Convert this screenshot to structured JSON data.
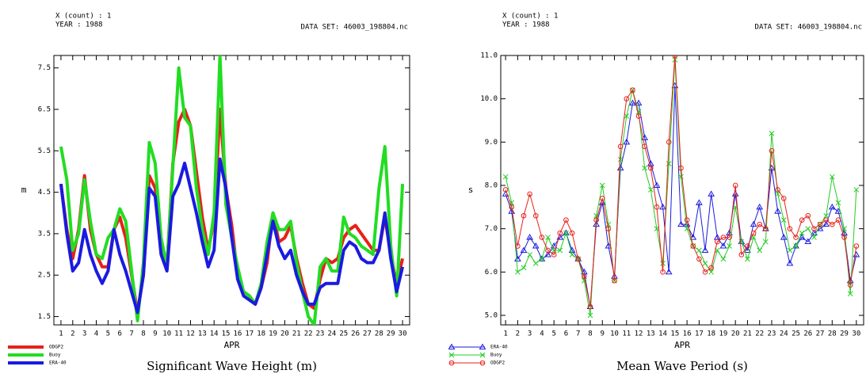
{
  "chart_data": [
    {
      "type": "line",
      "title": "Significant Wave Height (m)",
      "annotations": [
        "X (count) : 1",
        "YEAR : 1988",
        "DATA SET: 46003_198804.nc"
      ],
      "x_label": "APR",
      "y_label": "m",
      "line_width": 4,
      "legend": "bottom-left",
      "x": [
        1,
        1.5,
        2,
        2.5,
        3,
        3.5,
        4,
        4.5,
        5,
        5.5,
        6,
        6.5,
        7,
        7.5,
        8,
        8.5,
        9,
        9.5,
        10,
        10.5,
        11,
        11.5,
        12,
        12.5,
        13,
        13.5,
        14,
        14.5,
        15,
        15.5,
        16,
        16.5,
        17,
        17.5,
        18,
        18.5,
        19,
        19.5,
        20,
        20.5,
        21,
        21.5,
        22,
        22.5,
        23,
        23.5,
        24,
        24.5,
        25,
        25.5,
        26,
        26.5,
        27,
        27.5,
        28,
        28.5,
        29,
        29.5,
        30
      ],
      "xlim": [
        0.4,
        30.6
      ],
      "xticks": [
        1,
        2,
        3,
        4,
        5,
        6,
        7,
        8,
        9,
        10,
        11,
        12,
        13,
        14,
        15,
        16,
        17,
        18,
        19,
        20,
        21,
        22,
        23,
        24,
        25,
        26,
        27,
        28,
        29,
        30
      ],
      "ylim": [
        1.3,
        7.8
      ],
      "yticks": [
        1.5,
        2.5,
        3.5,
        4.5,
        5.5,
        6.5,
        7.5
      ],
      "series": [
        {
          "name": "ODGP2",
          "color": "#e8201a",
          "marker": "none",
          "values": [
            4.7,
            3.6,
            2.9,
            3.6,
            4.9,
            3.6,
            3.0,
            2.7,
            2.7,
            3.6,
            3.9,
            3.4,
            2.5,
            1.6,
            2.5,
            4.9,
            4.6,
            3.2,
            2.7,
            5.2,
            6.2,
            6.5,
            6.1,
            5.0,
            3.9,
            3.1,
            3.8,
            6.5,
            4.6,
            3.7,
            2.5,
            2.1,
            2.0,
            1.8,
            2.2,
            2.8,
            4.0,
            3.3,
            3.4,
            3.7,
            2.9,
            2.3,
            1.8,
            1.7,
            2.4,
            2.9,
            2.8,
            2.9,
            3.4,
            3.6,
            3.7,
            3.5,
            3.3,
            3.1,
            3.1,
            3.9,
            3.0,
            2.3,
            2.9
          ]
        },
        {
          "name": "Buoy",
          "color": "#22dd22",
          "marker": "none",
          "values": [
            5.6,
            4.8,
            3.1,
            3.5,
            4.8,
            3.8,
            3.0,
            2.9,
            3.4,
            3.6,
            4.1,
            3.8,
            2.6,
            1.4,
            2.8,
            5.7,
            5.2,
            3.4,
            2.7,
            5.1,
            7.5,
            6.3,
            6.1,
            4.6,
            3.6,
            3.0,
            4.0,
            7.8,
            4.2,
            3.4,
            2.7,
            2.1,
            2.0,
            1.8,
            2.3,
            3.3,
            4.0,
            3.6,
            3.6,
            3.8,
            2.8,
            2.1,
            1.5,
            1.3,
            2.7,
            2.9,
            2.6,
            2.6,
            3.9,
            3.5,
            3.4,
            3.2,
            3.1,
            3.0,
            4.6,
            5.6,
            3.2,
            2.0,
            4.7
          ]
        },
        {
          "name": "ERA-40",
          "color": "#1a1ae0",
          "marker": "none",
          "values": [
            4.7,
            3.5,
            2.6,
            2.8,
            3.6,
            3.0,
            2.6,
            2.3,
            2.6,
            3.6,
            3.0,
            2.6,
            2.1,
            1.6,
            2.5,
            4.6,
            4.4,
            3.0,
            2.6,
            4.4,
            4.7,
            5.2,
            4.6,
            4.0,
            3.3,
            2.7,
            3.1,
            5.3,
            4.6,
            3.4,
            2.4,
            2.0,
            1.9,
            1.8,
            2.2,
            3.0,
            3.8,
            3.2,
            2.9,
            3.1,
            2.5,
            2.1,
            1.8,
            1.8,
            2.2,
            2.3,
            2.3,
            2.3,
            3.1,
            3.3,
            3.2,
            2.9,
            2.8,
            2.8,
            3.1,
            4.0,
            2.9,
            2.1,
            2.7
          ]
        }
      ]
    },
    {
      "type": "line",
      "title": "Mean Wave Period (s)",
      "annotations": [
        "X (count) : 1",
        "YEAR : 1988",
        "DATA SET: 46003_198804.nc"
      ],
      "x_label": "APR",
      "y_label": "s",
      "line_width": 1,
      "legend": "bottom-left",
      "x": [
        1,
        1.5,
        2,
        2.5,
        3,
        3.5,
        4,
        4.5,
        5,
        5.5,
        6,
        6.5,
        7,
        7.5,
        8,
        8.5,
        9,
        9.5,
        10,
        10.5,
        11,
        11.5,
        12,
        12.5,
        13,
        13.5,
        14,
        14.5,
        15,
        15.5,
        16,
        16.5,
        17,
        17.5,
        18,
        18.5,
        19,
        19.5,
        20,
        20.5,
        21,
        21.5,
        22,
        22.5,
        23,
        23.5,
        24,
        24.5,
        25,
        25.5,
        26,
        26.5,
        27,
        27.5,
        28,
        28.5,
        29,
        29.5,
        30
      ],
      "xlim": [
        0.6,
        30.6
      ],
      "xticks": [
        1,
        2,
        3,
        4,
        5,
        6,
        7,
        8,
        9,
        10,
        11,
        12,
        13,
        14,
        15,
        16,
        17,
        18,
        19,
        20,
        21,
        22,
        23,
        24,
        25,
        26,
        27,
        28,
        29,
        30
      ],
      "ylim": [
        4.78,
        11.0
      ],
      "yticks": [
        {
          "value": 5,
          "label": "5.0"
        },
        {
          "value": 6,
          "label": "6.0"
        },
        {
          "value": 7,
          "label": "7.0"
        },
        {
          "value": 8,
          "label": "8.0"
        },
        {
          "value": 9,
          "label": "9.0"
        },
        {
          "value": 10,
          "label": "10.0"
        },
        {
          "value": 11,
          "label": "11.0"
        }
      ],
      "series": [
        {
          "name": "ERA-40",
          "color": "#1a1ae0",
          "marker": "triangle",
          "values": [
            7.8,
            7.4,
            6.3,
            6.5,
            6.8,
            6.6,
            6.3,
            6.4,
            6.6,
            6.8,
            6.9,
            6.5,
            6.3,
            6.0,
            5.2,
            7.1,
            7.6,
            6.6,
            5.9,
            8.4,
            9.0,
            9.9,
            9.9,
            9.1,
            8.5,
            8.0,
            7.5,
            6.0,
            10.3,
            7.1,
            7.1,
            6.8,
            7.6,
            6.5,
            7.8,
            6.8,
            6.6,
            6.9,
            7.8,
            6.7,
            6.5,
            7.1,
            7.5,
            7.0,
            8.4,
            7.4,
            6.8,
            6.2,
            6.6,
            6.8,
            6.7,
            6.9,
            7.0,
            7.1,
            7.5,
            7.4,
            6.9,
            5.8,
            6.4
          ]
        },
        {
          "name": "Buoy",
          "color": "#22cc22",
          "marker": "cross",
          "values": [
            8.2,
            7.6,
            6.0,
            6.1,
            6.4,
            6.2,
            6.3,
            6.8,
            6.5,
            6.5,
            6.9,
            6.4,
            6.3,
            5.8,
            5.0,
            7.3,
            8.0,
            7.1,
            5.8,
            8.6,
            9.6,
            10.2,
            9.7,
            8.4,
            7.9,
            7.0,
            6.2,
            8.5,
            10.9,
            8.2,
            7.0,
            6.6,
            6.5,
            6.2,
            6.0,
            6.5,
            6.3,
            6.6,
            7.5,
            6.7,
            6.3,
            6.8,
            6.5,
            6.7,
            9.2,
            7.8,
            7.2,
            6.5,
            6.6,
            6.9,
            7.0,
            6.8,
            7.1,
            7.3,
            8.2,
            7.6,
            7.0,
            5.5,
            7.9
          ]
        },
        {
          "name": "ODGP2",
          "color": "#e8201a",
          "marker": "circle",
          "values": [
            7.9,
            7.5,
            6.6,
            7.3,
            7.8,
            7.3,
            6.8,
            6.5,
            6.4,
            6.9,
            7.2,
            6.9,
            6.3,
            5.9,
            5.2,
            7.2,
            7.7,
            7.0,
            5.8,
            8.9,
            10.0,
            10.2,
            9.6,
            8.9,
            8.4,
            7.5,
            6.0,
            9.0,
            11.0,
            8.4,
            7.2,
            6.6,
            6.3,
            6.0,
            6.1,
            6.7,
            6.8,
            6.8,
            8.0,
            6.4,
            6.6,
            6.9,
            7.1,
            7.0,
            8.8,
            7.9,
            7.7,
            7.0,
            6.8,
            7.2,
            7.3,
            7.0,
            7.1,
            7.2,
            7.1,
            7.2,
            6.8,
            5.7,
            6.6
          ]
        }
      ]
    }
  ]
}
